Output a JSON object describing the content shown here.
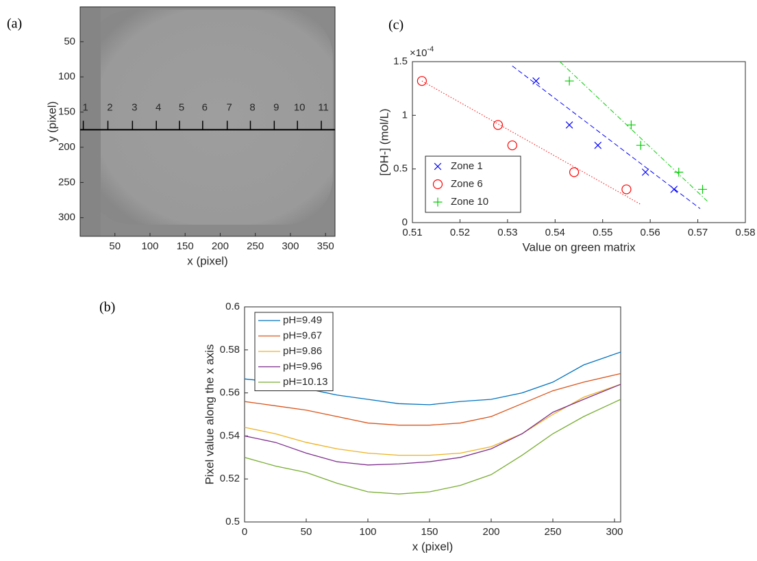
{
  "chart_data": [
    {
      "type": "image",
      "panel_label": "(a)",
      "x_label": "x (pixel)",
      "y_label": "y (pixel)",
      "xlim": [
        0.5,
        363.5
      ],
      "ylim": [
        0.5,
        326.5
      ],
      "y_reversed": true,
      "xticks": [
        50,
        100,
        150,
        200,
        250,
        300,
        350
      ],
      "yticks": [
        50,
        100,
        150,
        200,
        250,
        300
      ],
      "line_y": 175,
      "zones": [
        {
          "label": "1",
          "x": 5
        },
        {
          "label": "2",
          "x": 40
        },
        {
          "label": "3",
          "x": 75
        },
        {
          "label": "4",
          "x": 109
        },
        {
          "label": "5",
          "x": 142
        },
        {
          "label": "6",
          "x": 175
        },
        {
          "label": "7",
          "x": 210
        },
        {
          "label": "8",
          "x": 243
        },
        {
          "label": "9",
          "x": 277
        },
        {
          "label": "10",
          "x": 310
        },
        {
          "label": "11",
          "x": 344
        }
      ]
    },
    {
      "type": "line",
      "panel_label": "(b)",
      "x_label": "x (pixel)",
      "y_label": "Pixel value along the x axis",
      "xlim": [
        0,
        305
      ],
      "ylim": [
        0.5,
        0.6
      ],
      "xticks": [
        0,
        50,
        100,
        150,
        200,
        250,
        300
      ],
      "yticks": [
        0.5,
        0.52,
        0.54,
        0.56,
        0.58,
        0.6
      ],
      "legend": "upper left",
      "x": [
        0,
        25,
        50,
        75,
        100,
        125,
        150,
        175,
        200,
        225,
        250,
        275,
        305
      ],
      "series": [
        {
          "name": "pH=9.49",
          "color": "#0072bd",
          "values": [
            0.5665,
            0.565,
            0.562,
            0.559,
            0.557,
            0.555,
            0.5545,
            0.556,
            0.557,
            0.56,
            0.565,
            0.573,
            0.579
          ]
        },
        {
          "name": "pH=9.67",
          "color": "#d95319",
          "values": [
            0.556,
            0.554,
            0.552,
            0.549,
            0.546,
            0.545,
            0.545,
            0.546,
            0.549,
            0.555,
            0.561,
            0.565,
            0.569
          ]
        },
        {
          "name": "pH=9.86",
          "color": "#edb120",
          "values": [
            0.544,
            0.541,
            0.537,
            0.534,
            0.532,
            0.531,
            0.531,
            0.532,
            0.535,
            0.541,
            0.55,
            0.558,
            0.564
          ]
        },
        {
          "name": "pH=9.96",
          "color": "#7e2f8e",
          "values": [
            0.54,
            0.537,
            0.532,
            0.528,
            0.5265,
            0.527,
            0.528,
            0.53,
            0.534,
            0.541,
            0.551,
            0.557,
            0.564
          ]
        },
        {
          "name": "pH=10.13",
          "color": "#77ac30",
          "values": [
            0.53,
            0.526,
            0.523,
            0.518,
            0.514,
            0.513,
            0.514,
            0.517,
            0.522,
            0.531,
            0.541,
            0.549,
            0.557
          ]
        }
      ]
    },
    {
      "type": "scatter",
      "panel_label": "(c)",
      "x_label": "Value on green matrix",
      "y_label": "[OH-] (mol/L)",
      "y_multiplier": "×10",
      "y_multiplier_exponent": "-4",
      "xlim": [
        0.51,
        0.58
      ],
      "ylim": [
        0,
        1.5
      ],
      "xticks": [
        0.51,
        0.52,
        0.53,
        0.54,
        0.55,
        0.56,
        0.57,
        0.58
      ],
      "yticks": [
        0,
        0.5,
        1,
        1.5
      ],
      "legend": "lower left",
      "series": [
        {
          "name": "Zone 1",
          "color": "#0000ff",
          "marker": "x",
          "line_style": "dashed",
          "x": [
            0.536,
            0.543,
            0.549,
            0.559,
            0.565
          ],
          "values": [
            1.32,
            0.91,
            0.72,
            0.47,
            0.31
          ],
          "fit_x": [
            0.531,
            0.5705
          ],
          "fit_y": [
            1.46,
            0.13
          ]
        },
        {
          "name": "Zone 6",
          "color": "#ff0000",
          "marker": "o",
          "line_style": "dotted",
          "x": [
            0.512,
            0.528,
            0.531,
            0.544,
            0.555
          ],
          "values": [
            1.32,
            0.91,
            0.72,
            0.47,
            0.31
          ],
          "fit_x": [
            0.512,
            0.558
          ],
          "fit_y": [
            1.32,
            0.17
          ]
        },
        {
          "name": "Zone 10",
          "color": "#00cc00",
          "marker": "+",
          "line_style": "dashdot",
          "x": [
            0.543,
            0.556,
            0.558,
            0.566,
            0.571
          ],
          "values": [
            1.32,
            0.91,
            0.72,
            0.47,
            0.31
          ],
          "fit_x": [
            0.541,
            0.572
          ],
          "fit_y": [
            1.5,
            0.2
          ]
        }
      ]
    }
  ]
}
